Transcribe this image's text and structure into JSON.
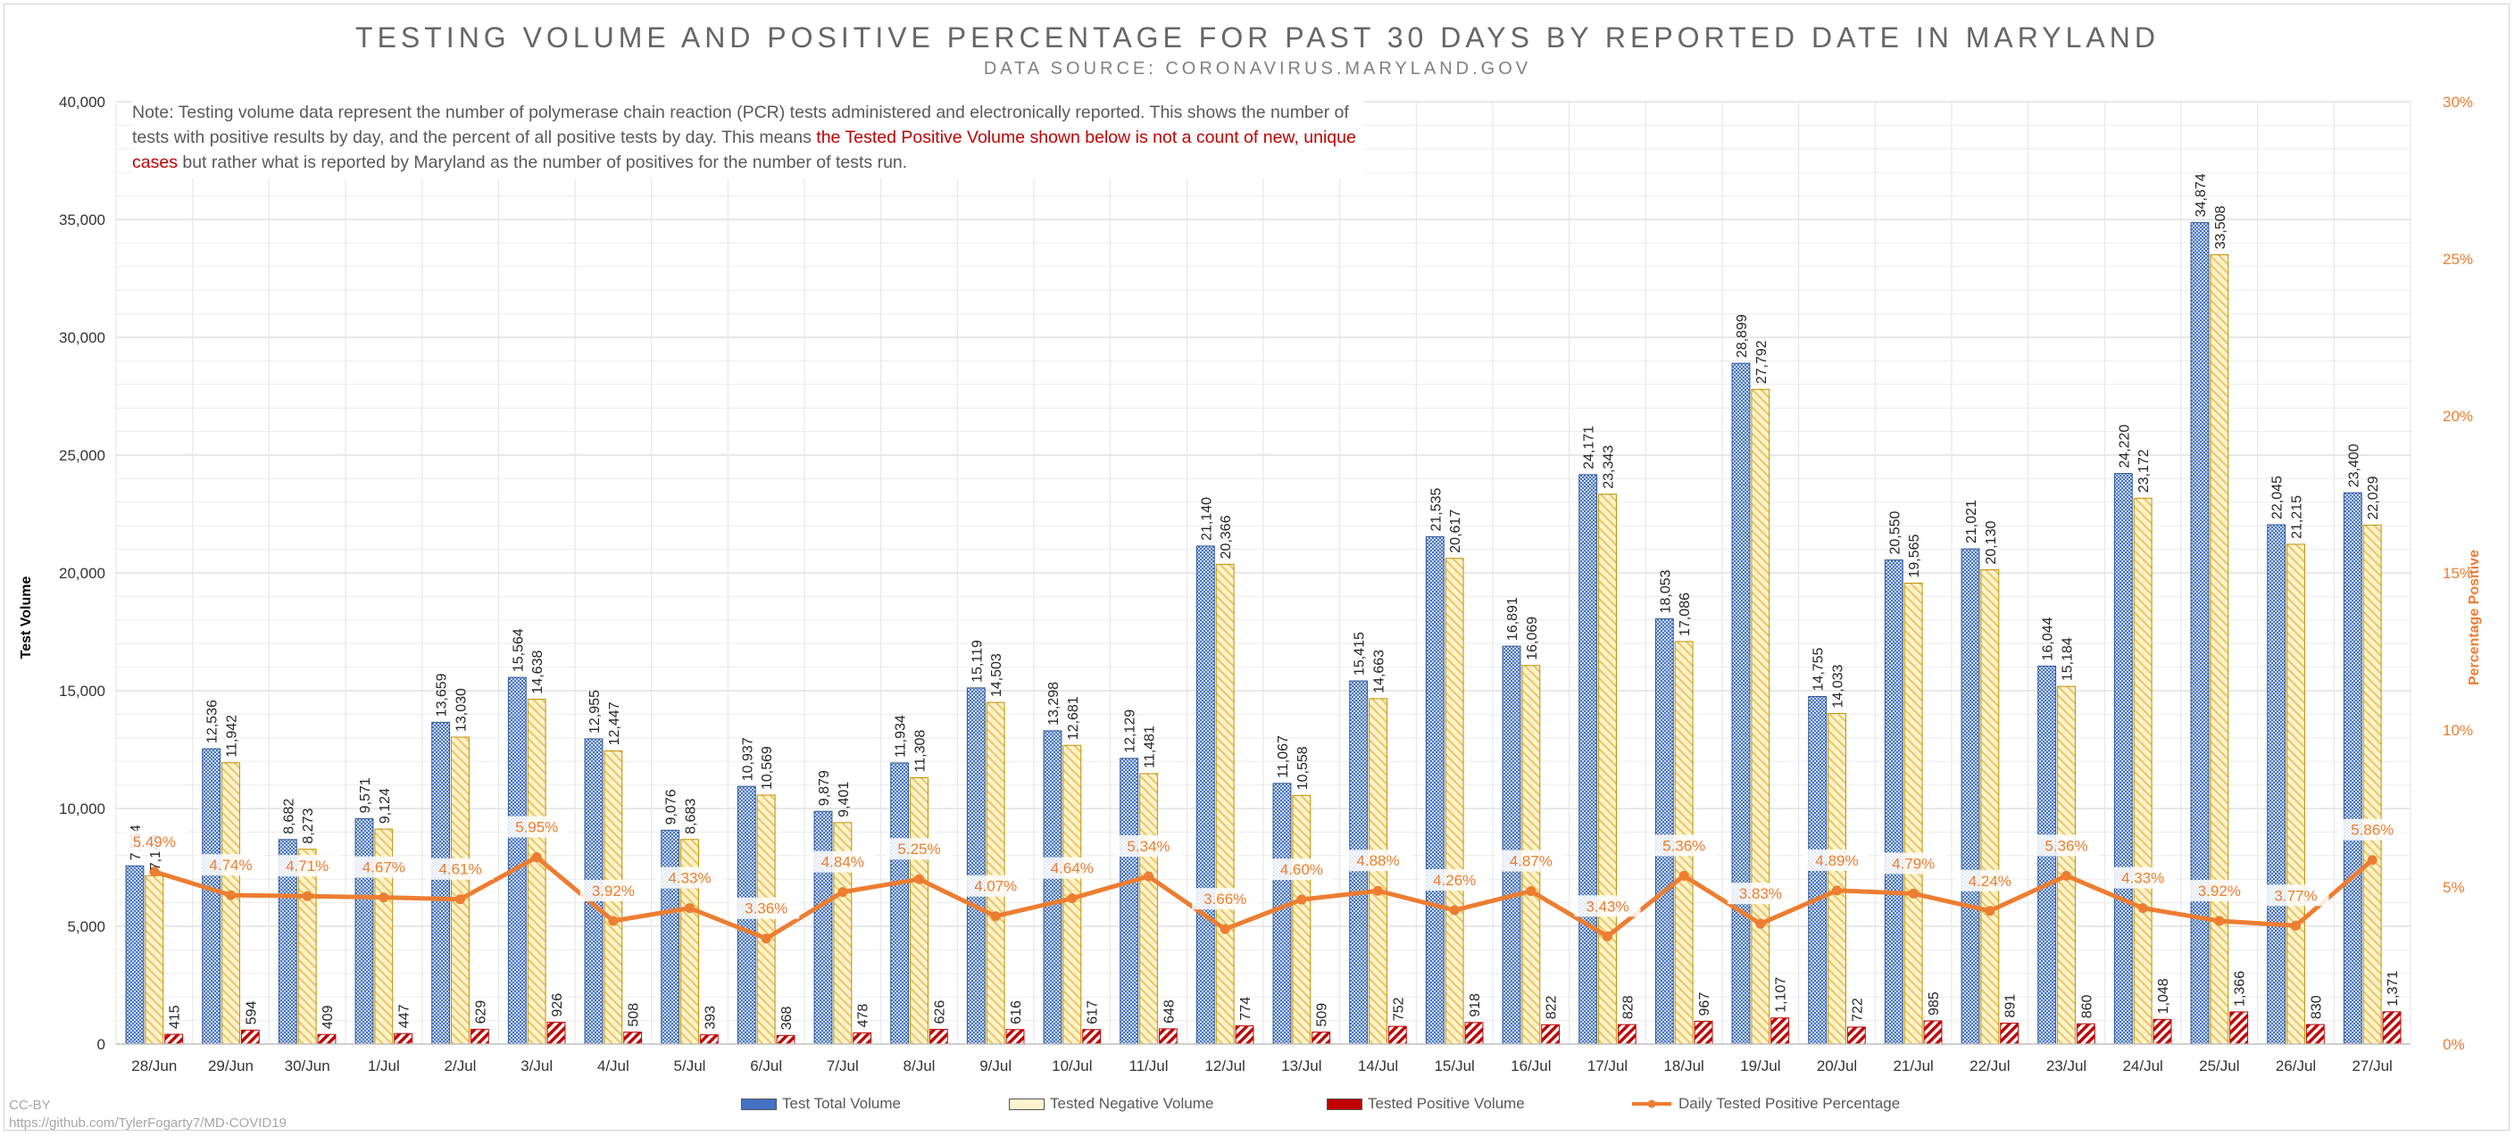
{
  "title": "TESTING VOLUME AND POSITIVE PERCENTAGE FOR PAST 30 DAYS BY REPORTED DATE IN MARYLAND",
  "subtitle": "DATA SOURCE: CORONAVIRUS.MARYLAND.GOV",
  "note": {
    "part1": "Note: Testing volume data represent the number of polymerase chain reaction (PCR) tests administered and electronically reported. This shows the number of tests with positive results by day, and the percent of all positive tests by day. This means ",
    "highlight": "the Tested Positive Volume shown below is not a count of new, unique cases",
    "part2": " but rather what is reported by Maryland as the number of positives for the number of tests run."
  },
  "credit": {
    "license": "CC-BY",
    "url": "https://github.com/TylerFogarty7/MD-COVID19"
  },
  "colors": {
    "total": "#4472c4",
    "negative": "#ffe699",
    "positive": "#c00000",
    "line": "#ed7d31"
  },
  "chart_data": {
    "type": "bar",
    "xlabel": "",
    "ylabel": "Test Volume",
    "y2label": "Percentage Positive",
    "ylim": [
      0,
      40000
    ],
    "y2lim": [
      0,
      30
    ],
    "yticks": [
      "0",
      "5,000",
      "10,000",
      "15,000",
      "20,000",
      "25,000",
      "30,000",
      "35,000",
      "40,000"
    ],
    "y2ticks": [
      "0%",
      "5%",
      "10%",
      "15%",
      "20%",
      "25%",
      "30%"
    ],
    "grid": true,
    "legend_position": "bottom",
    "categories": [
      "28/Jun",
      "29/Jun",
      "30/Jun",
      "1/Jul",
      "2/Jul",
      "3/Jul",
      "4/Jul",
      "5/Jul",
      "6/Jul",
      "7/Jul",
      "8/Jul",
      "9/Jul",
      "10/Jul",
      "11/Jul",
      "12/Jul",
      "13/Jul",
      "14/Jul",
      "15/Jul",
      "16/Jul",
      "17/Jul",
      "18/Jul",
      "19/Jul",
      "20/Jul",
      "21/Jul",
      "22/Jul",
      "23/Jul",
      "24/Jul",
      "25/Jul",
      "26/Jul",
      "27/Jul"
    ],
    "series": [
      {
        "name": "Test Total Volume",
        "values": [
          7564,
          12536,
          8682,
          9571,
          13659,
          15564,
          12955,
          9076,
          10937,
          9879,
          11934,
          15119,
          13298,
          12129,
          21140,
          11067,
          15415,
          21535,
          16891,
          24171,
          18053,
          28899,
          14755,
          20550,
          21021,
          16044,
          24220,
          34874,
          22045,
          23400
        ],
        "labels": [
          "7,564",
          "12,536",
          "8,682",
          "9,571",
          "13,659",
          "15,564",
          "12,955",
          "9,076",
          "10,937",
          "9,879",
          "11,934",
          "15,119",
          "13,298",
          "12,129",
          "21,140",
          "11,067",
          "15,415",
          "21,535",
          "16,891",
          "24,171",
          "18,053",
          "28,899",
          "14,755",
          "20,550",
          "21,021",
          "16,044",
          "24,220",
          "34,874",
          "22,045",
          "23,400"
        ]
      },
      {
        "name": "Tested Negative Volume",
        "values": [
          7149,
          11942,
          8273,
          9124,
          13030,
          14638,
          12447,
          8683,
          10569,
          9401,
          11308,
          14503,
          12681,
          11481,
          20366,
          10558,
          14663,
          20617,
          16069,
          23343,
          17086,
          27792,
          14033,
          19565,
          20130,
          15184,
          23172,
          33508,
          21215,
          22029
        ],
        "labels": [
          "7,149",
          "11,942",
          "8,273",
          "9,124",
          "13,030",
          "14,638",
          "12,447",
          "8,683",
          "10,569",
          "9,401",
          "11,308",
          "14,503",
          "12,681",
          "11,481",
          "20,366",
          "10,558",
          "14,663",
          "20,617",
          "16,069",
          "23,343",
          "17,086",
          "27,792",
          "14,033",
          "19,565",
          "20,130",
          "15,184",
          "23,172",
          "33,508",
          "21,215",
          "22,029"
        ]
      },
      {
        "name": "Tested Positive Volume",
        "values": [
          415,
          594,
          409,
          447,
          629,
          926,
          508,
          393,
          368,
          478,
          626,
          616,
          617,
          648,
          774,
          509,
          752,
          918,
          822,
          828,
          967,
          1107,
          722,
          985,
          891,
          860,
          1048,
          1366,
          830,
          1371
        ],
        "labels": [
          "415",
          "594",
          "409",
          "447",
          "629",
          "926",
          "508",
          "393",
          "368",
          "478",
          "626",
          "616",
          "617",
          "648",
          "774",
          "509",
          "752",
          "918",
          "822",
          "828",
          "967",
          "1,107",
          "722",
          "985",
          "891",
          "860",
          "1,048",
          "1,366",
          "830",
          "1,371"
        ]
      }
    ],
    "line_series": {
      "name": "Daily Tested Positive Percentage",
      "axis": "right",
      "values": [
        5.49,
        4.74,
        4.71,
        4.67,
        4.61,
        5.95,
        3.92,
        4.33,
        3.36,
        4.84,
        5.25,
        4.07,
        4.64,
        5.34,
        3.66,
        4.6,
        4.88,
        4.26,
        4.87,
        3.43,
        5.36,
        3.83,
        4.89,
        4.79,
        4.24,
        5.36,
        4.33,
        3.92,
        3.77,
        5.86
      ],
      "labels": [
        "5.49%",
        "4.74%",
        "4.71%",
        "4.67%",
        "4.61%",
        "5.95%",
        "3.92%",
        "4.33%",
        "3.36%",
        "4.84%",
        "5.25%",
        "4.07%",
        "4.64%",
        "5.34%",
        "3.66%",
        "4.60%",
        "4.88%",
        "4.26%",
        "4.87%",
        "3.43%",
        "5.36%",
        "3.83%",
        "4.89%",
        "4.79%",
        "4.24%",
        "5.36%",
        "4.33%",
        "3.92%",
        "3.77%",
        "5.86%"
      ]
    }
  }
}
